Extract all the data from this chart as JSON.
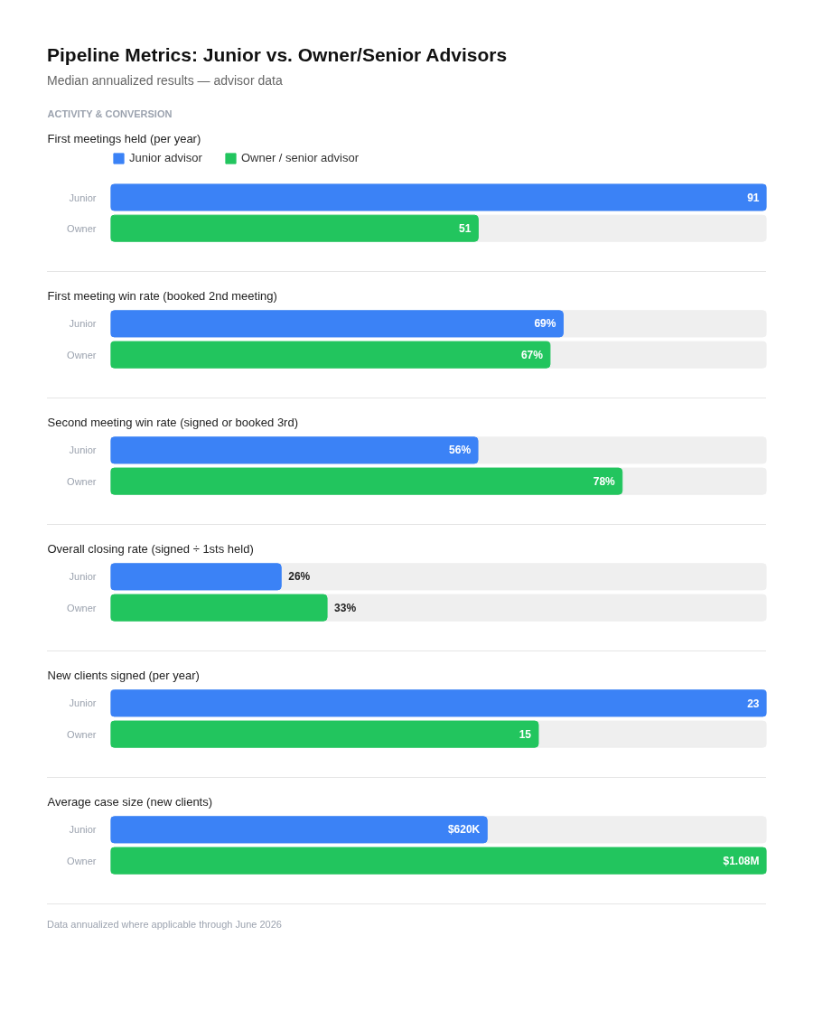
{
  "chart_data": [
    {
      "type": "other",
      "title": "Pipeline Metrics: Junior vs. Owner/Senior Advisors",
      "subtitle": "Median annualized results — advisor data"
    },
    {
      "type": "bar",
      "orientation": "horizontal",
      "title": "First meetings held (per year)",
      "annotations": [
        "ACTIVITY & CONVERSION"
      ],
      "legend": "top left",
      "categories": [
        "Junior",
        "Owner"
      ],
      "xlim": [
        0,
        91
      ],
      "data_labels": true,
      "series": [
        {
          "name": "Junior advisor",
          "color": "#3b82f6",
          "values": [
            91,
            null
          ]
        },
        {
          "name": "Owner / senior advisor",
          "color": "#22c55e",
          "values": [
            null,
            51
          ]
        }
      ]
    },
    {
      "type": "bar",
      "orientation": "horizontal",
      "title": "First meeting win rate (booked 2nd meeting)",
      "categories": [
        "Junior",
        "Owner"
      ],
      "xlim": [
        0,
        100
      ],
      "series": [
        {
          "color": "#3b82f6",
          "values": [
            69,
            null
          ],
          "value_labels": [
            "69%",
            null
          ]
        },
        {
          "color": "#22c55e",
          "values": [
            null,
            67
          ],
          "value_labels": [
            null,
            "67%"
          ]
        }
      ]
    },
    {
      "type": "bar",
      "orientation": "horizontal",
      "title": "Second meeting win rate (signed or booked 3rd)",
      "categories": [
        "Junior",
        "Owner"
      ],
      "xlim": [
        0,
        100
      ],
      "series": [
        {
          "color": "#3b82f6",
          "values": [
            56,
            null
          ],
          "value_labels": [
            "56%",
            null
          ]
        },
        {
          "color": "#22c55e",
          "values": [
            null,
            78
          ],
          "value_labels": [
            null,
            "78%"
          ]
        }
      ]
    },
    {
      "type": "bar",
      "orientation": "horizontal",
      "title": "Overall closing rate (signed ÷ 1sts held)",
      "categories": [
        "Junior",
        "Owner"
      ],
      "xlim": [
        0,
        100
      ],
      "series": [
        {
          "color": "#3b82f6",
          "values": [
            26,
            null
          ],
          "value_labels": [
            "26%",
            null
          ]
        },
        {
          "color": "#22c55e",
          "values": [
            null,
            33
          ],
          "value_labels": [
            null,
            "33%"
          ]
        }
      ]
    },
    {
      "type": "bar",
      "orientation": "horizontal",
      "title": "New clients signed (per year)",
      "categories": [
        "Junior",
        "Owner"
      ],
      "xlim": [
        0,
        23
      ],
      "data_labels": true,
      "series": [
        {
          "color": "#3b82f6",
          "values": [
            23,
            null
          ]
        },
        {
          "color": "#22c55e",
          "values": [
            null,
            15
          ]
        }
      ]
    },
    {
      "type": "bar",
      "orientation": "horizontal",
      "title": "Average case size (new clients)",
      "categories": [
        "Junior",
        "Owner"
      ],
      "xlim": [
        0,
        1080000
      ],
      "series": [
        {
          "color": "#3b82f6",
          "values": [
            620000,
            null
          ],
          "value_labels": [
            "$620K",
            null
          ]
        },
        {
          "color": "#22c55e",
          "values": [
            null,
            1080000
          ],
          "value_labels": [
            null,
            "$1.08M"
          ]
        }
      ]
    },
    {
      "type": "other",
      "annotations": [
        "Data annualized where applicable through June 2026"
      ]
    }
  ]
}
